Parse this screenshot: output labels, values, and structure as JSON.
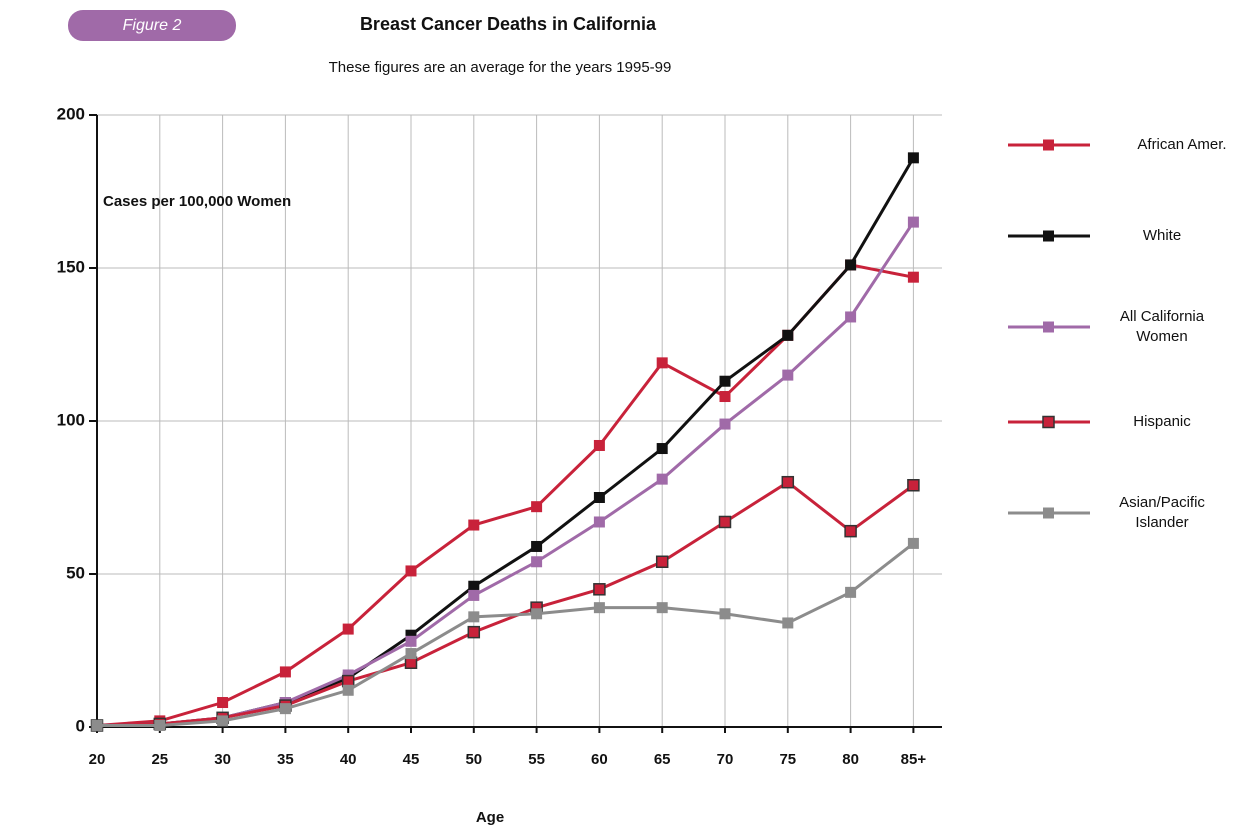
{
  "chart_data": {
    "type": "line",
    "badge": "Figure 2",
    "title": "Breast Cancer Deaths in California",
    "subtitle": "These figures are an average for the years 1995-99",
    "y_annotation": "Cases per 100,000 Women",
    "x_label": "Age",
    "categories": [
      "20",
      "25",
      "30",
      "35",
      "40",
      "45",
      "50",
      "55",
      "60",
      "65",
      "70",
      "75",
      "80",
      "85+"
    ],
    "ylim": [
      0,
      200
    ],
    "yticks": [
      0,
      50,
      100,
      150,
      200
    ],
    "grid": true,
    "series": [
      {
        "name": "African Amer.",
        "color": "#c8223a",
        "values": [
          0.5,
          2,
          8,
          18,
          32,
          51,
          66,
          72,
          92,
          119,
          108,
          128,
          151,
          147
        ]
      },
      {
        "name": "White",
        "color": "#111111",
        "values": [
          0.5,
          1,
          3,
          8,
          16,
          30,
          46,
          59,
          75,
          91,
          113,
          128,
          151,
          186
        ]
      },
      {
        "name": "All California Women",
        "color": "#a06aa8",
        "values": [
          0.5,
          1,
          3,
          8,
          17,
          28,
          43,
          54,
          67,
          81,
          99,
          115,
          134,
          165
        ]
      },
      {
        "name": "Hispanic",
        "color": "#c8223a",
        "values": [
          0.5,
          1,
          3,
          7,
          15,
          21,
          31,
          39,
          45,
          54,
          67,
          80,
          64,
          79
        ]
      },
      {
        "name": "Asian/Pacific Islander",
        "color": "#8c8c8c",
        "values": [
          0.5,
          0.5,
          2,
          6,
          12,
          24,
          36,
          37,
          39,
          39,
          37,
          34,
          44,
          60
        ]
      }
    ]
  }
}
